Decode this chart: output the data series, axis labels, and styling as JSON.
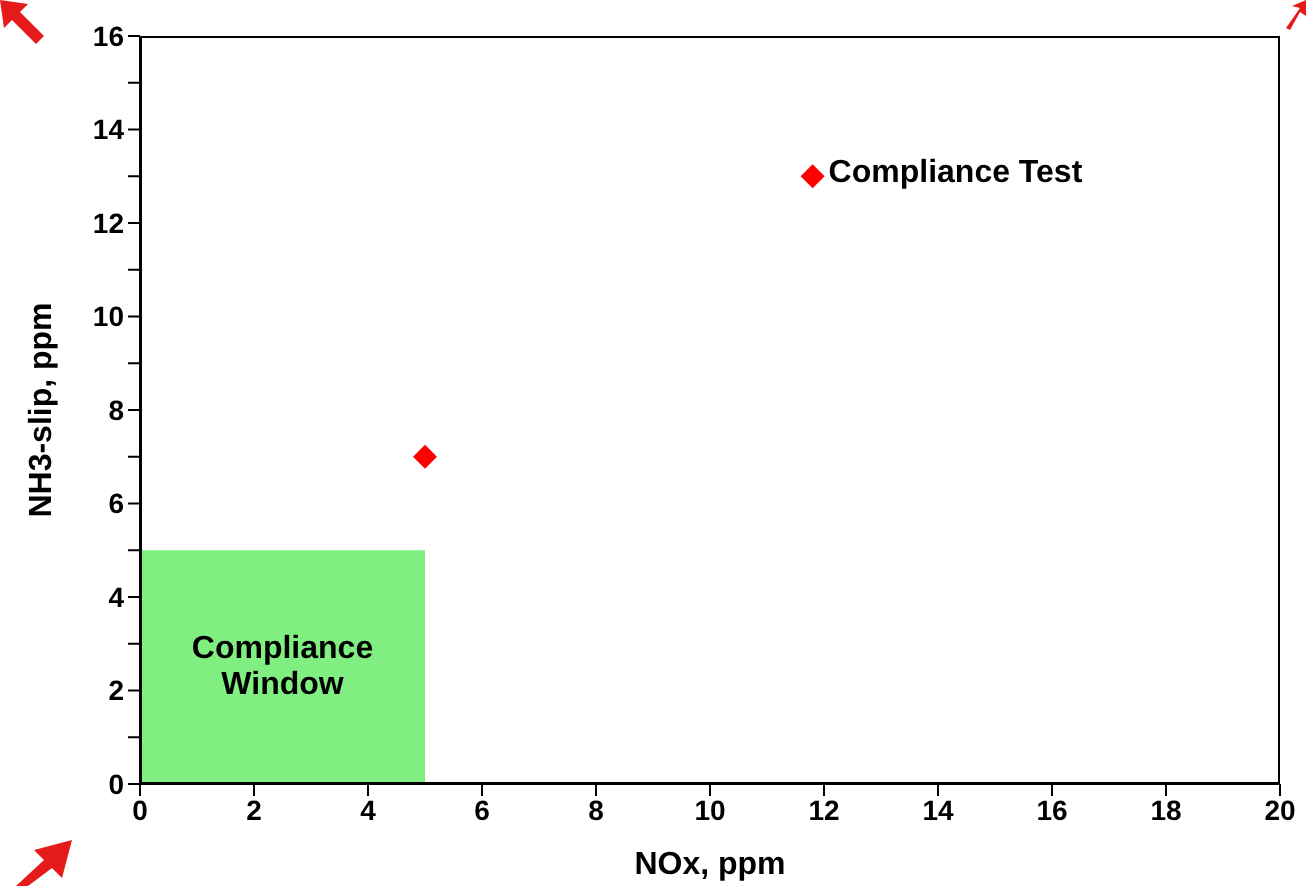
{
  "chart_data": {
    "type": "scatter",
    "xlabel": "NOx, ppm",
    "ylabel": "NH3-slip, ppm",
    "xlim": [
      0,
      20
    ],
    "xticks": [
      0,
      2,
      4,
      6,
      8,
      10,
      12,
      14,
      16,
      18,
      20
    ],
    "ylim": [
      0,
      16
    ],
    "yticks": [
      0,
      {
        "value": 1,
        "label": null
      },
      2,
      {
        "value": 3,
        "label": null
      },
      4,
      {
        "value": 5,
        "label": null
      },
      6,
      {
        "value": 7,
        "label": null
      },
      8,
      {
        "value": 9,
        "label": null
      },
      10,
      {
        "value": 11,
        "label": null
      },
      12,
      {
        "value": 13,
        "label": null
      },
      14,
      {
        "value": 15,
        "label": null
      },
      16
    ],
    "grid": false,
    "legend": false,
    "series": [
      {
        "type": "area",
        "name": "Compliance Window",
        "color": "#80ee80",
        "x": [
          0,
          5
        ],
        "values": [
          5,
          5
        ]
      },
      {
        "color": "#ff0000",
        "marker": "diamond",
        "x": [
          5,
          11.8
        ],
        "values": [
          7,
          13
        ]
      }
    ],
    "annotations": [
      {
        "text": "Compliance Test",
        "x": 11.8,
        "y": 13
      }
    ]
  }
}
